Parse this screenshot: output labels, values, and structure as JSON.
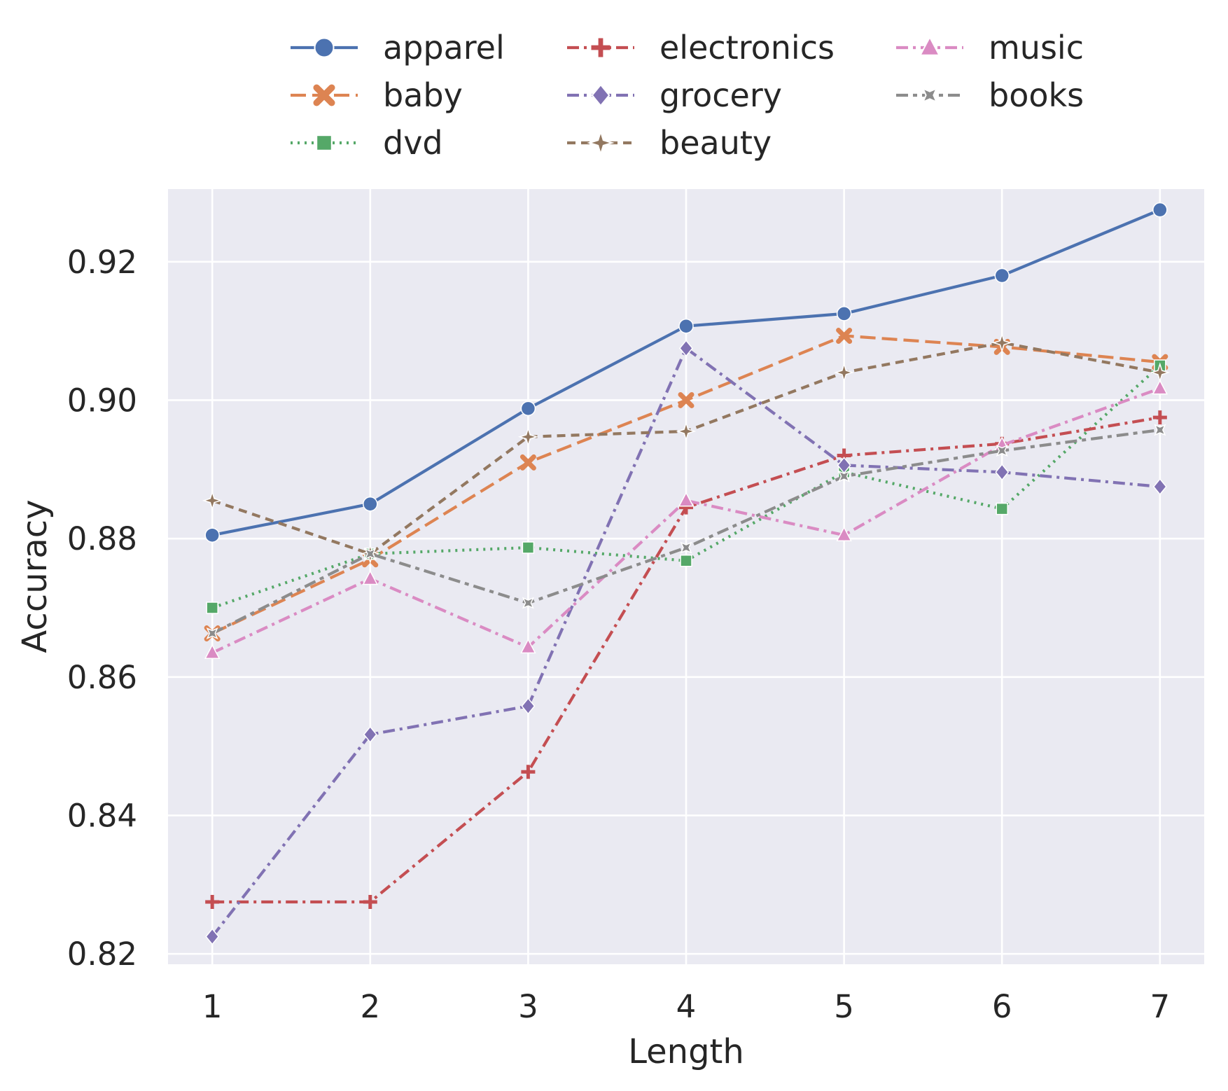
{
  "chart_data": {
    "type": "line",
    "xlabel": "Length",
    "ylabel": "Accuracy",
    "x": [
      1,
      2,
      3,
      4,
      5,
      6,
      7
    ],
    "xlim": [
      0.72,
      7.28
    ],
    "ylim": [
      0.8185,
      0.9305
    ],
    "yticks": [
      0.82,
      0.84,
      0.86,
      0.88,
      0.9,
      0.92
    ],
    "ytick_labels": [
      "0.82",
      "0.84",
      "0.86",
      "0.88",
      "0.90",
      "0.92"
    ],
    "grid": true,
    "legend_position": "top",
    "series": [
      {
        "name": "apparel",
        "color": "#4c72b0",
        "marker": "circle",
        "dash": "solid",
        "values": [
          0.8805,
          0.885,
          0.8988,
          0.9107,
          0.9125,
          0.918,
          0.9275
        ]
      },
      {
        "name": "baby",
        "color": "#dd8452",
        "marker": "x",
        "dash": "dashed",
        "values": [
          0.8663,
          0.877,
          0.891,
          0.9,
          0.9093,
          0.9077,
          0.9055
        ]
      },
      {
        "name": "dvd",
        "color": "#55a868",
        "marker": "square",
        "dash": "dotted",
        "values": [
          0.87,
          0.8778,
          0.8787,
          0.8768,
          0.8896,
          0.8843,
          0.905
        ]
      },
      {
        "name": "electronics",
        "color": "#c44e52",
        "marker": "plus",
        "dash": "dashdot",
        "values": [
          0.8275,
          0.8275,
          0.8463,
          0.8845,
          0.892,
          0.8937,
          0.8975
        ]
      },
      {
        "name": "grocery",
        "color": "#8172b3",
        "marker": "diamond",
        "dash": "dashdot",
        "values": [
          0.8225,
          0.8517,
          0.8558,
          0.9075,
          0.8906,
          0.8896,
          0.8875
        ]
      },
      {
        "name": "beauty",
        "color": "#937860",
        "marker": "star",
        "dash": "loosedash",
        "values": [
          0.8855,
          0.8778,
          0.8947,
          0.8955,
          0.904,
          0.9083,
          0.904
        ]
      },
      {
        "name": "music",
        "color": "#da8bc3",
        "marker": "triangle",
        "dash": "dashdot",
        "values": [
          0.8635,
          0.8742,
          0.8643,
          0.8855,
          0.8805,
          0.8935,
          0.9017
        ]
      },
      {
        "name": "books",
        "color": "#8c8c8c",
        "marker": "starx",
        "dash": "dashdot2",
        "values": [
          0.8663,
          0.8778,
          0.8707,
          0.8787,
          0.889,
          0.8927,
          0.8957
        ]
      }
    ]
  }
}
